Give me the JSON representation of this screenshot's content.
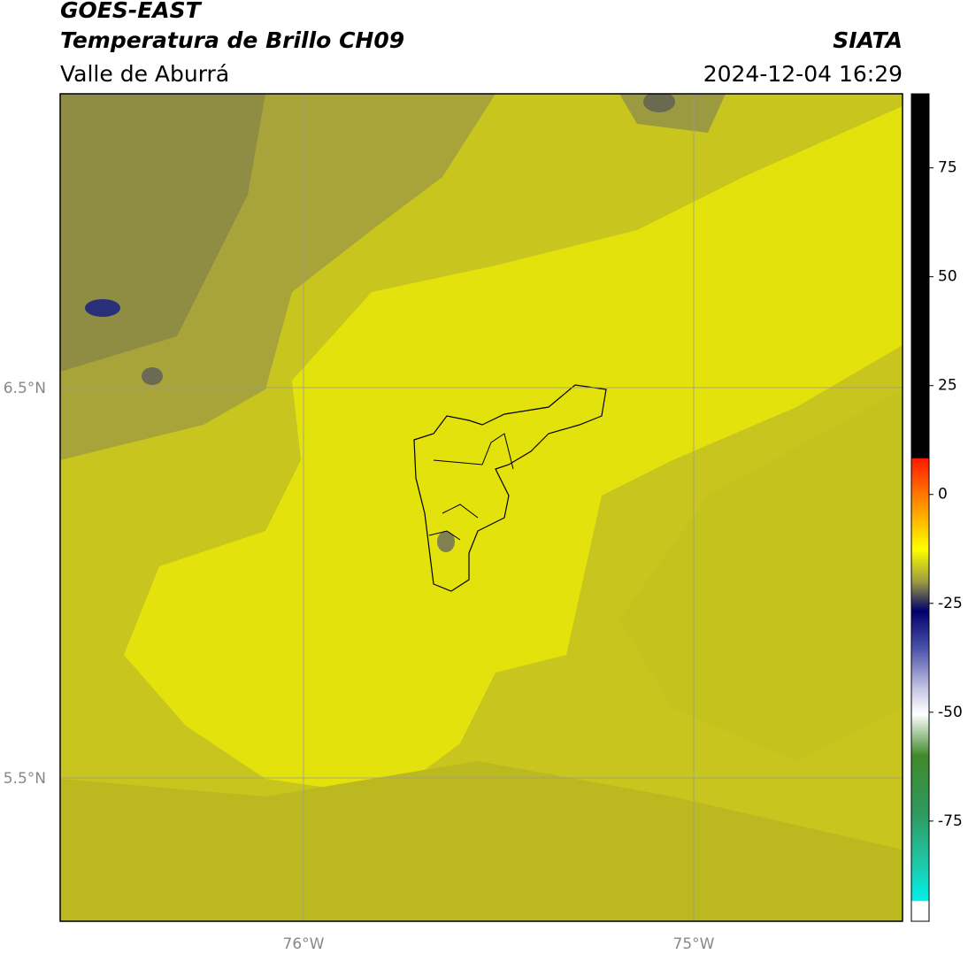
{
  "header": {
    "title": "GOES-EAST",
    "subtitle": "Temperatura de Brillo CH09",
    "source": "SIATA",
    "region": "Valle de Aburrá",
    "datetime": "2024-12-04 16:29"
  },
  "map": {
    "lat_labels": [
      "6.5°N",
      "5.5°N"
    ],
    "lon_labels": [
      "76°W",
      "75°W"
    ]
  },
  "colorbar": {
    "lim": [
      -98,
      92
    ],
    "ticks": [
      75,
      50,
      25,
      0,
      -25,
      -50,
      -75
    ]
  }
}
